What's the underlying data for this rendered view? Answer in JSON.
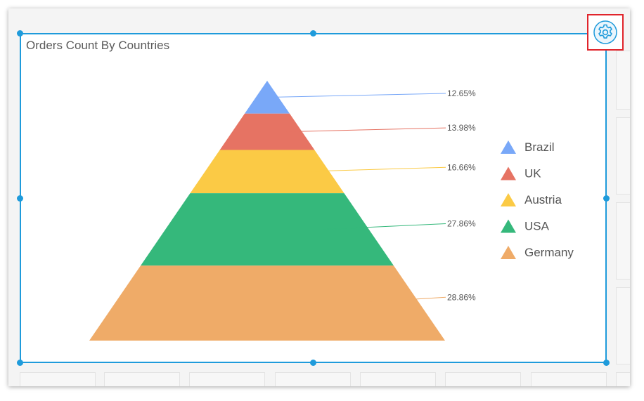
{
  "widget": {
    "title": "Orders Count By Countries"
  },
  "toolbar": {
    "settings_icon": "gear-icon"
  },
  "colors": {
    "accent": "#1f9bdb",
    "settings_border": "#e0242b"
  },
  "chart_data": {
    "type": "pyramid",
    "title": "Orders Count By Countries",
    "data_label_format": "percent",
    "legend_position": "right",
    "series": [
      {
        "name": "Brazil",
        "value": 12.65,
        "label": "12.65%",
        "color": "#79a8f8"
      },
      {
        "name": "UK",
        "value": 13.98,
        "label": "13.98%",
        "color": "#e67363"
      },
      {
        "name": "Austria",
        "value": 16.66,
        "label": "16.66%",
        "color": "#fbca45"
      },
      {
        "name": "USA",
        "value": 27.86,
        "label": "27.86%",
        "color": "#35b87b"
      },
      {
        "name": "Germany",
        "value": 28.86,
        "label": "28.86%",
        "color": "#efab68"
      }
    ]
  }
}
